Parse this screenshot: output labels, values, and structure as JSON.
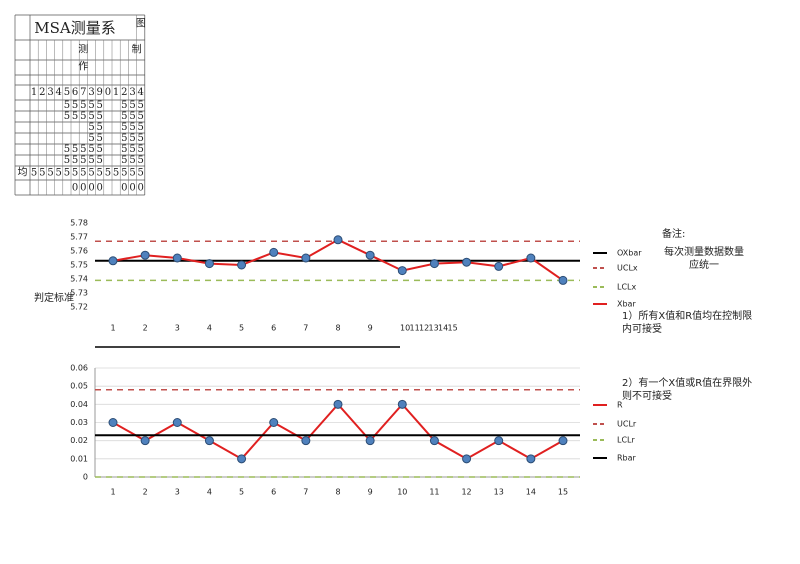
{
  "table": {
    "title": "MSA测量系",
    "title_right": "图",
    "headers": [
      "测",
      "制"
    ],
    "sub": "作",
    "index": [
      "1",
      "2",
      "3",
      "4",
      "5",
      "6",
      "7",
      "3",
      "9",
      "0",
      "1",
      "2",
      "3",
      "4"
    ],
    "rows": [
      [
        null,
        null,
        null,
        null,
        "5",
        "5",
        "5",
        "5",
        "5",
        null,
        null,
        "5",
        "5",
        "5"
      ],
      [
        null,
        null,
        null,
        null,
        "5",
        "5",
        "5",
        "5",
        "5",
        null,
        null,
        "5",
        "5",
        "5"
      ],
      [
        null,
        null,
        null,
        null,
        null,
        null,
        null,
        "5",
        "5",
        null,
        null,
        "5",
        "5",
        "5"
      ],
      [
        null,
        null,
        null,
        null,
        null,
        null,
        null,
        "5",
        "5",
        null,
        null,
        "5",
        "5",
        "5"
      ],
      [
        null,
        null,
        null,
        null,
        "5",
        "5",
        "5",
        "5",
        "5",
        null,
        null,
        "5",
        "5",
        "5"
      ],
      [
        null,
        null,
        null,
        null,
        "5",
        "5",
        "5",
        "5",
        "5",
        null,
        null,
        "5",
        "5",
        "5"
      ]
    ],
    "avg_label": "均",
    "avg": [
      "5",
      "5",
      "5",
      "5",
      "5",
      "5",
      "5",
      "5",
      "5",
      "5",
      "5",
      "5",
      "5",
      "5"
    ],
    "zeros": [
      null,
      null,
      null,
      null,
      null,
      "0",
      "0",
      "0",
      "0",
      null,
      null,
      "0",
      "0",
      "0"
    ]
  },
  "notes": {
    "remark_title": "备注:",
    "remark": "每次测量数据数量应统一",
    "criteria": "判定标准",
    "rule1": "1）所有X值和R值均在控制限内可接受",
    "rule2": "2）有一个X值或R值在界限外则不可接受"
  },
  "chart_data": [
    {
      "type": "line",
      "categories": [
        "1",
        "2",
        "3",
        "4",
        "5",
        "6",
        "7",
        "8",
        "9",
        "10",
        "11",
        "12",
        "13",
        "14",
        "15"
      ],
      "ylim": [
        5.72,
        5.78
      ],
      "yticks": [
        5.72,
        5.73,
        5.74,
        5.75,
        5.76,
        5.77,
        5.78
      ],
      "grid": false,
      "series": [
        {
          "name": "OXbar",
          "color": "#000000",
          "value": 5.753
        },
        {
          "name": "UCLx",
          "color": "#c0504d",
          "value": 5.767,
          "dash": true
        },
        {
          "name": "LCLx",
          "color": "#9bbb59",
          "value": 5.739,
          "dash": true
        },
        {
          "name": "Xbar",
          "color": "#e02020",
          "values": [
            5.753,
            5.757,
            5.755,
            5.751,
            5.75,
            5.759,
            5.755,
            5.768,
            5.757,
            5.746,
            5.751,
            5.752,
            5.749,
            5.755,
            5.739
          ]
        }
      ]
    },
    {
      "type": "line",
      "categories": [
        "1",
        "2",
        "3",
        "4",
        "5",
        "6",
        "7",
        "8",
        "9",
        "10",
        "11",
        "12",
        "13",
        "14",
        "15"
      ],
      "ylim": [
        0,
        0.06
      ],
      "yticks": [
        0,
        0.01,
        0.02,
        0.03,
        0.04,
        0.05,
        0.06
      ],
      "grid": true,
      "series": [
        {
          "name": "R",
          "color": "#e02020",
          "values": [
            0.03,
            0.02,
            0.03,
            0.02,
            0.01,
            0.03,
            0.02,
            0.04,
            0.02,
            0.04,
            0.02,
            0.01,
            0.02,
            0.01,
            0.02
          ]
        },
        {
          "name": "UCLr",
          "color": "#c0504d",
          "value": 0.048,
          "dash": true
        },
        {
          "name": "LCLr",
          "color": "#9bbb59",
          "value": 0,
          "dash": true
        },
        {
          "name": "Rbar",
          "color": "#000000",
          "value": 0.023
        }
      ]
    }
  ]
}
